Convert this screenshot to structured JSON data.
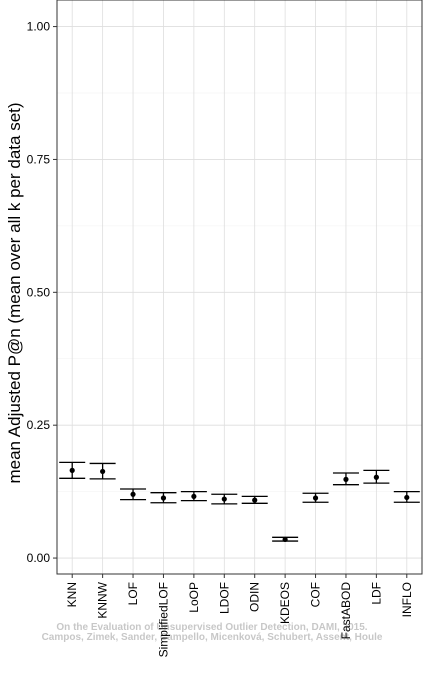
{
  "chart_data": {
    "type": "errorbar",
    "ylabel": "mean Adjusted P@n (mean over all k per data set)",
    "xlabel": "",
    "ylim": [
      -0.03,
      1.05
    ],
    "yticks": [
      0.0,
      0.25,
      0.5,
      0.75,
      1.0
    ],
    "ytick_labels": [
      "0.00",
      "0.25",
      "0.50",
      "0.75",
      "1.00"
    ],
    "grid": true,
    "categories": [
      "KNN",
      "KNNW",
      "LOF",
      "SimplifiedLOF",
      "LoOP",
      "LDOF",
      "ODIN",
      "KDEOS",
      "COF",
      "FastABOD",
      "LDF",
      "INFLO"
    ],
    "series": [
      {
        "mean": [
          0.165,
          0.163,
          0.12,
          0.113,
          0.116,
          0.111,
          0.109,
          0.035,
          0.113,
          0.148,
          0.152,
          0.114
        ],
        "lower": [
          0.15,
          0.149,
          0.11,
          0.104,
          0.108,
          0.102,
          0.103,
          0.032,
          0.105,
          0.138,
          0.141,
          0.105
        ],
        "upper": [
          0.18,
          0.178,
          0.13,
          0.123,
          0.125,
          0.12,
          0.116,
          0.039,
          0.122,
          0.16,
          0.165,
          0.125
        ]
      }
    ],
    "color": "#000000"
  },
  "watermark": {
    "line1": "On the Evaluation of Unsupervised Outlier Detection, DAMI, 2015.",
    "line2": "Campos, Zimek, Sander, Campello, Micenková, Schubert, Assent, Houle"
  }
}
